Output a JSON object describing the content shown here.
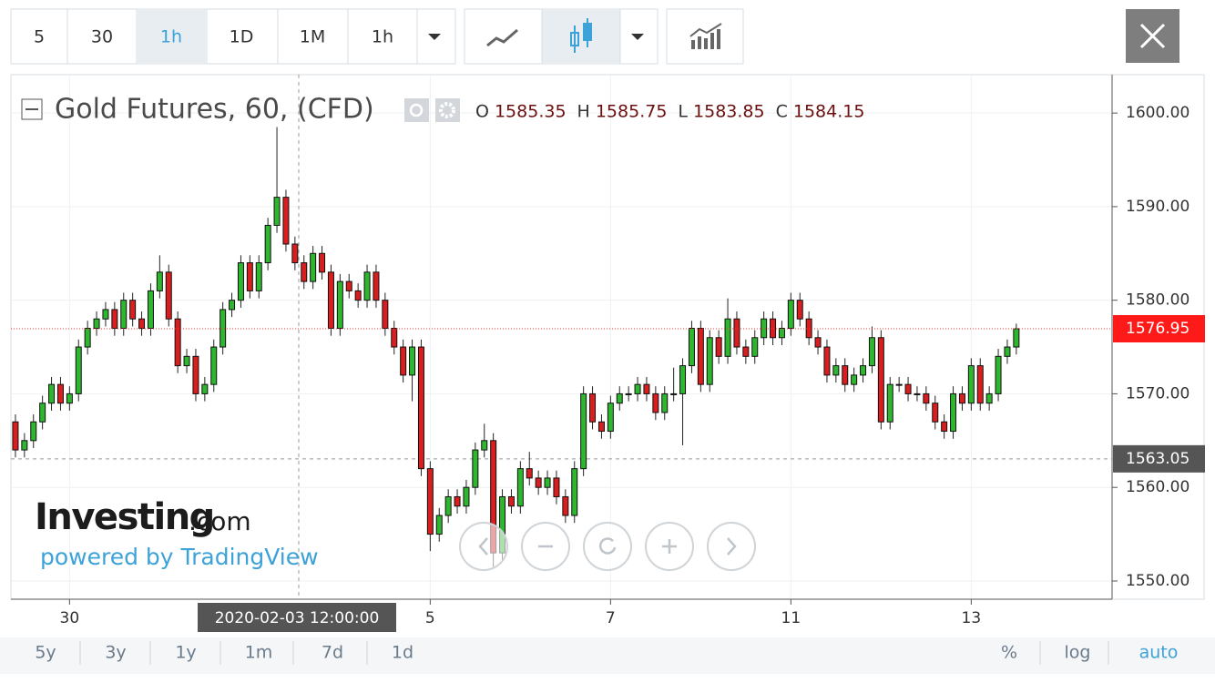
{
  "toolbar": {
    "intervals": [
      "5",
      "30",
      "1h",
      "1D",
      "1M"
    ],
    "dropdown": "1h"
  },
  "footer": {
    "ranges": [
      "5y",
      "3y",
      "1y",
      "1m",
      "7d",
      "1d"
    ],
    "scales": [
      "%",
      "log",
      "auto"
    ]
  },
  "watermark": {
    "brand": "Investing",
    "domain": ".com",
    "powered": "powered by TradingView"
  },
  "chart_data": {
    "type": "candlestick",
    "title": "Gold Futures, 60, (CFD)",
    "header": [
      {
        "label": "O",
        "value": 1585.35
      },
      {
        "label": "H",
        "value": 1585.75
      },
      {
        "label": "L",
        "value": 1583.85
      },
      {
        "label": "C",
        "value": 1584.15
      }
    ],
    "categories": [
      null,
      null,
      null,
      null,
      null,
      null,
      "30",
      null,
      null,
      null,
      null,
      null,
      null,
      null,
      null,
      null,
      null,
      null,
      null,
      null,
      null,
      null,
      null,
      null,
      null,
      null,
      null,
      null,
      null,
      null,
      null,
      null,
      null,
      null,
      null,
      null,
      null,
      null,
      null,
      null,
      null,
      null,
      null,
      null,
      null,
      null,
      "5",
      null,
      null,
      null,
      null,
      null,
      null,
      null,
      null,
      null,
      null,
      null,
      null,
      null,
      null,
      null,
      null,
      null,
      null,
      null,
      "7",
      null,
      null,
      null,
      null,
      null,
      null,
      null,
      null,
      null,
      null,
      null,
      null,
      null,
      null,
      null,
      null,
      null,
      null,
      null,
      "11",
      null,
      null,
      null,
      null,
      null,
      null,
      null,
      null,
      null,
      null,
      null,
      null,
      null,
      null,
      null,
      null,
      null,
      null,
      null,
      "13",
      null,
      null,
      null,
      null,
      null
    ],
    "open": [
      1567,
      1564,
      1565,
      1567,
      1569,
      1571,
      1569,
      1570,
      1575,
      1577,
      1578,
      1579,
      1577,
      1580,
      1578,
      1577,
      1581,
      1583,
      1578,
      1573,
      1574,
      1570,
      1571,
      1575,
      1579,
      1580,
      1584,
      1581,
      1584,
      1588,
      1591,
      1586,
      1584,
      1582,
      1585,
      1583,
      1577,
      1582,
      1581,
      1580,
      1583,
      1580,
      1577,
      1575,
      1572,
      1575,
      1562,
      1555,
      1557,
      1559,
      1558,
      1560,
      1564,
      1565,
      1553,
      1559,
      1558,
      1562,
      1561,
      1560,
      1561,
      1559,
      1557,
      1562,
      1570,
      1567,
      1566,
      1569,
      1570,
      1570,
      1571,
      1570,
      1568,
      1570,
      1570,
      1573,
      1577,
      1571,
      1576,
      1574,
      1578,
      1575,
      1574,
      1576,
      1578,
      1576,
      1577,
      1580,
      1578,
      1576,
      1575,
      1572,
      1573,
      1571,
      1572,
      1573,
      1576,
      1567,
      1571,
      1571,
      1570,
      1570,
      1569,
      1567,
      1566,
      1570,
      1569,
      1573,
      1569,
      1570,
      1574,
      1575
    ],
    "high": [
      1567.8,
      1565.8,
      1567.8,
      1569.8,
      1571.8,
      1571.8,
      1570.8,
      1575.8,
      1577.8,
      1578.8,
      1579.8,
      1579.8,
      1580.8,
      1580.8,
      1578.8,
      1581.8,
      1584.8,
      1583.8,
      1578.8,
      1574.8,
      1574.8,
      1571.8,
      1575.8,
      1579.8,
      1580.8,
      1584.8,
      1584.8,
      1584.8,
      1588.8,
      1598.5,
      1591.8,
      1586.8,
      1584.8,
      1585.8,
      1585.8,
      1583.8,
      1582.8,
      1582.8,
      1581.8,
      1583.8,
      1583.8,
      1580.8,
      1577.8,
      1575.8,
      1575.8,
      1575.8,
      1562.8,
      1557.8,
      1559.8,
      1559.8,
      1560.8,
      1564.8,
      1566.8,
      1565.8,
      1559.8,
      1559.8,
      1562.8,
      1563.8,
      1561.8,
      1561.8,
      1561.8,
      1559.8,
      1562.8,
      1570.8,
      1570.8,
      1567.8,
      1569.8,
      1570.8,
      1570.8,
      1571.8,
      1571.8,
      1570.8,
      1570.8,
      1572.8,
      1573.8,
      1577.8,
      1577.8,
      1576.8,
      1576.8,
      1580.2,
      1578.8,
      1575.8,
      1576.8,
      1578.8,
      1578.8,
      1577.8,
      1580.8,
      1580.8,
      1578.8,
      1576.8,
      1575.8,
      1573.8,
      1573.8,
      1572.8,
      1573.8,
      1577.2,
      1576.8,
      1571.8,
      1571.8,
      1571.8,
      1570.8,
      1570.8,
      1569.8,
      1567.8,
      1570.8,
      1570.8,
      1573.8,
      1573.8,
      1570.8,
      1574.8,
      1575.8,
      1577.5
    ],
    "low": [
      1563.2,
      1563.2,
      1564.2,
      1566.2,
      1568.2,
      1568.2,
      1568.2,
      1569.2,
      1574.2,
      1576.2,
      1577.2,
      1576.2,
      1576.2,
      1577.2,
      1576.2,
      1576.2,
      1580.2,
      1577.2,
      1572.2,
      1572.2,
      1569.2,
      1569.2,
      1570.2,
      1574.2,
      1578.2,
      1579.2,
      1580.2,
      1580.2,
      1583.2,
      1587.2,
      1585.2,
      1583.2,
      1581.2,
      1581.2,
      1582.2,
      1576.2,
      1576.2,
      1580.2,
      1579.2,
      1579.2,
      1579.2,
      1576.2,
      1574.2,
      1571.2,
      1569.2,
      1561.2,
      1553.2,
      1554.2,
      1556.2,
      1557.2,
      1557.2,
      1559.2,
      1563.2,
      1551.5,
      1552.2,
      1557.2,
      1557.2,
      1560.2,
      1559.2,
      1559.2,
      1558.2,
      1556.2,
      1556.2,
      1561.2,
      1566.2,
      1565.2,
      1565.2,
      1568.2,
      1569.2,
      1569.2,
      1569.2,
      1567.2,
      1567.2,
      1569.2,
      1564.5,
      1572.2,
      1570.2,
      1570.2,
      1573.2,
      1573.2,
      1574.2,
      1573.2,
      1573.2,
      1575.2,
      1575.2,
      1575.2,
      1576.2,
      1577.2,
      1575.2,
      1574.2,
      1571.2,
      1571.2,
      1570.2,
      1570.2,
      1571.2,
      1572.2,
      1566.2,
      1566.2,
      1570.2,
      1569.2,
      1569.2,
      1568.2,
      1566.2,
      1565.2,
      1565.2,
      1568.2,
      1568.2,
      1568.2,
      1568.2,
      1569.2,
      1573.2,
      1574.2
    ],
    "close": [
      1564,
      1565,
      1567,
      1569,
      1571,
      1569,
      1570,
      1575,
      1577,
      1578,
      1579,
      1577,
      1580,
      1578,
      1577,
      1581,
      1583,
      1578,
      1573,
      1574,
      1570,
      1571,
      1575,
      1579,
      1580,
      1584,
      1581,
      1584,
      1588,
      1591,
      1586,
      1584,
      1582,
      1585,
      1583,
      1577,
      1582,
      1581,
      1580,
      1583,
      1580,
      1577,
      1575,
      1572,
      1575,
      1562,
      1555,
      1557,
      1559,
      1558,
      1560,
      1564,
      1565,
      1553,
      1559,
      1558,
      1562,
      1561,
      1560,
      1561,
      1559,
      1557,
      1562,
      1570,
      1567,
      1566,
      1569,
      1570,
      1570,
      1571,
      1570,
      1568,
      1570,
      1570,
      1573,
      1577,
      1571,
      1576,
      1574,
      1578,
      1575,
      1574,
      1576,
      1578,
      1576,
      1577,
      1580,
      1578,
      1576,
      1575,
      1572,
      1573,
      1571,
      1572,
      1573,
      1576,
      1567,
      1571,
      1571,
      1570,
      1570,
      1569,
      1567,
      1566,
      1570,
      1569,
      1573,
      1569,
      1570,
      1574,
      1575,
      1576.95
    ],
    "up_color": "#2fb62f",
    "down_color": "#d81e1e",
    "ylim": [
      1548.05,
      1604.1
    ],
    "yticks": [
      {
        "value": 1550,
        "label": "1550.00"
      },
      {
        "value": 1560,
        "label": "1560.00"
      },
      {
        "value": 1570,
        "label": "1570.00"
      },
      {
        "value": 1580,
        "label": "1580.00"
      },
      {
        "value": 1590,
        "label": "1590.00"
      },
      {
        "value": 1600,
        "label": "1600.00"
      }
    ],
    "last_price": 1576.95,
    "crosshair_price": 1563.05,
    "crosshair_time": "2020-02-03 12:00:00",
    "grid": true
  }
}
